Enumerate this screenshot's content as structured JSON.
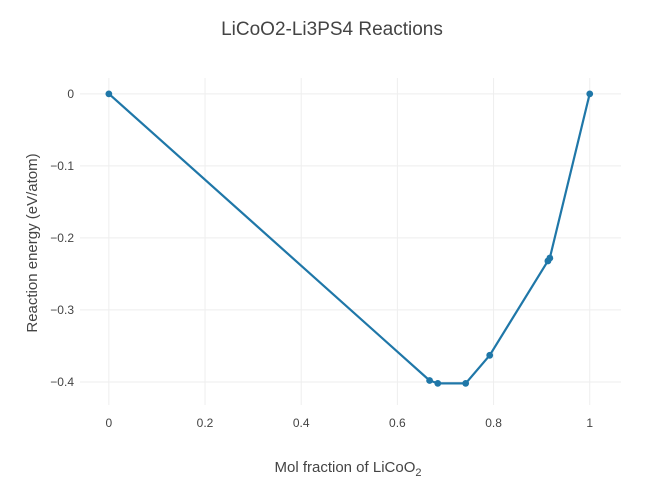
{
  "chart_data": {
    "type": "line",
    "title": "LiCoO2-Li3PS4 Reactions",
    "xlabel": "Mol fraction of LiCoO",
    "xlabel_subscript": "2",
    "ylabel": "Reaction energy (eV/atom)",
    "xlim": [
      -0.06,
      1.065
    ],
    "ylim": [
      -0.432,
      0.022
    ],
    "x_ticks": [
      0,
      0.2,
      0.4,
      0.6,
      0.8,
      1
    ],
    "x_tick_labels": [
      "0",
      "0.2",
      "0.4",
      "0.6",
      "0.8",
      "1"
    ],
    "y_ticks": [
      0,
      -0.1,
      -0.2,
      -0.3,
      -0.4
    ],
    "y_tick_labels": [
      "0",
      "−0.1",
      "−0.2",
      "−0.3",
      "−0.4"
    ],
    "grid": true,
    "color": "#1f77a8",
    "series": [
      {
        "x": [
          0,
          0.667,
          0.684,
          0.742,
          0.792,
          0.913,
          0.917,
          1
        ],
        "y": [
          0,
          -0.398,
          -0.402,
          -0.402,
          -0.363,
          -0.232,
          -0.228,
          0
        ]
      }
    ]
  }
}
